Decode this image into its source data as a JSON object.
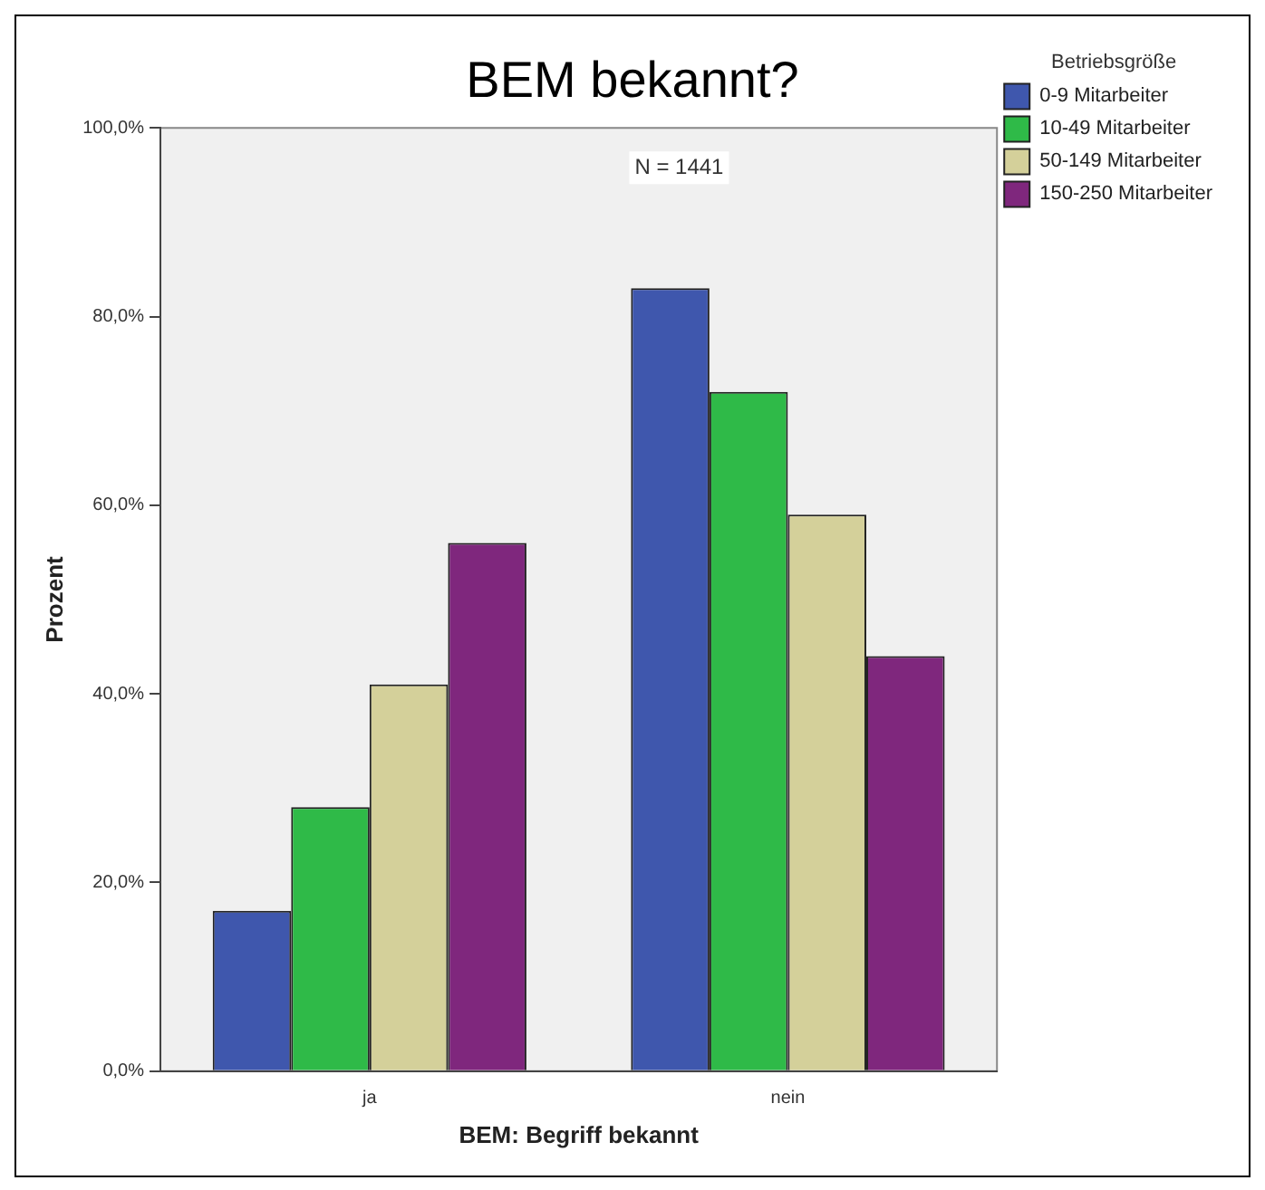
{
  "chart_data": {
    "type": "bar",
    "title": "BEM bekannt?",
    "xlabel": "BEM: Begriff bekannt",
    "ylabel": "Prozent",
    "legend_title": "Betriebsgröße",
    "legend": "top right",
    "grid": false,
    "categories": [
      "ja",
      "nein"
    ],
    "series": [
      {
        "name": "0-9 Mitarbeiter",
        "color": "#3f57ad",
        "values": [
          17,
          83
        ]
      },
      {
        "name": "10-49 Mitarbeiter",
        "color": "#2fba48",
        "values": [
          28,
          72
        ]
      },
      {
        "name": "50-149 Mitarbeiter",
        "color": "#d4d09a",
        "values": [
          41,
          59
        ]
      },
      {
        "name": "150-250 Mitarbeiter",
        "color": "#7f277d",
        "values": [
          56,
          44
        ]
      }
    ],
    "ylim": [
      0,
      100
    ],
    "yticks": [
      {
        "value": 0,
        "label": "0,0%"
      },
      {
        "value": 20,
        "label": "20,0%"
      },
      {
        "value": 40,
        "label": "40,0%"
      },
      {
        "value": 60,
        "label": "60,0%"
      },
      {
        "value": 80,
        "label": "80,0%"
      },
      {
        "value": 100,
        "label": "100,0%"
      }
    ],
    "annotations": [
      "N = 1441"
    ]
  }
}
